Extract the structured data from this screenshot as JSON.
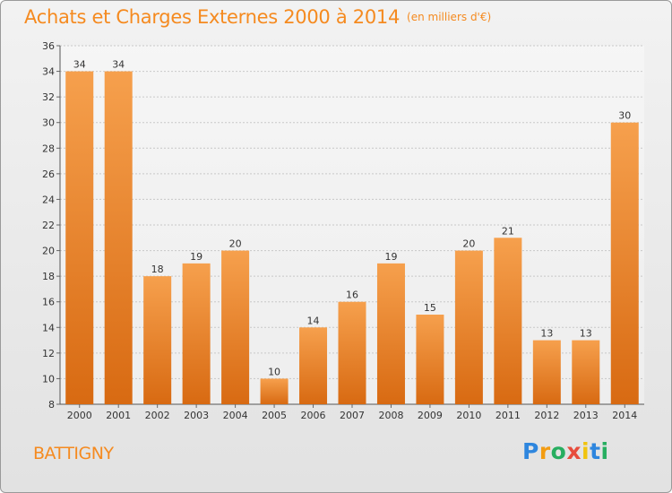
{
  "header": {
    "title": "Achats et Charges Externes 2000 à 2014",
    "subtitle": "(en milliers d'€)"
  },
  "footer": {
    "town": "BATTIGNY",
    "logo_text": "Proxiti",
    "logo_colors": [
      "#2e86de",
      "#f39c12",
      "#27ae60",
      "#e74c3c",
      "#f1c40f",
      "#2e86de",
      "#27ae60"
    ]
  },
  "colors": {
    "accent": "#f58a1f",
    "bar_top": "#f6a04d",
    "bar_bottom": "#d86a12"
  },
  "chart_data": {
    "type": "bar",
    "categories": [
      "2000",
      "2001",
      "2002",
      "2003",
      "2004",
      "2005",
      "2006",
      "2007",
      "2008",
      "2009",
      "2010",
      "2011",
      "2012",
      "2013",
      "2014"
    ],
    "values": [
      34,
      34,
      18,
      19,
      20,
      10,
      14,
      16,
      19,
      15,
      20,
      21,
      13,
      13,
      30
    ],
    "title": "Achats et Charges Externes 2000 à 2014",
    "subtitle": "(en milliers d'€)",
    "xlabel": "",
    "ylabel": "",
    "ylim": [
      8,
      36
    ],
    "yticks": [
      8,
      10,
      12,
      14,
      16,
      18,
      20,
      22,
      24,
      26,
      28,
      30,
      32,
      34,
      36
    ],
    "grid": true,
    "data_labels": true
  }
}
